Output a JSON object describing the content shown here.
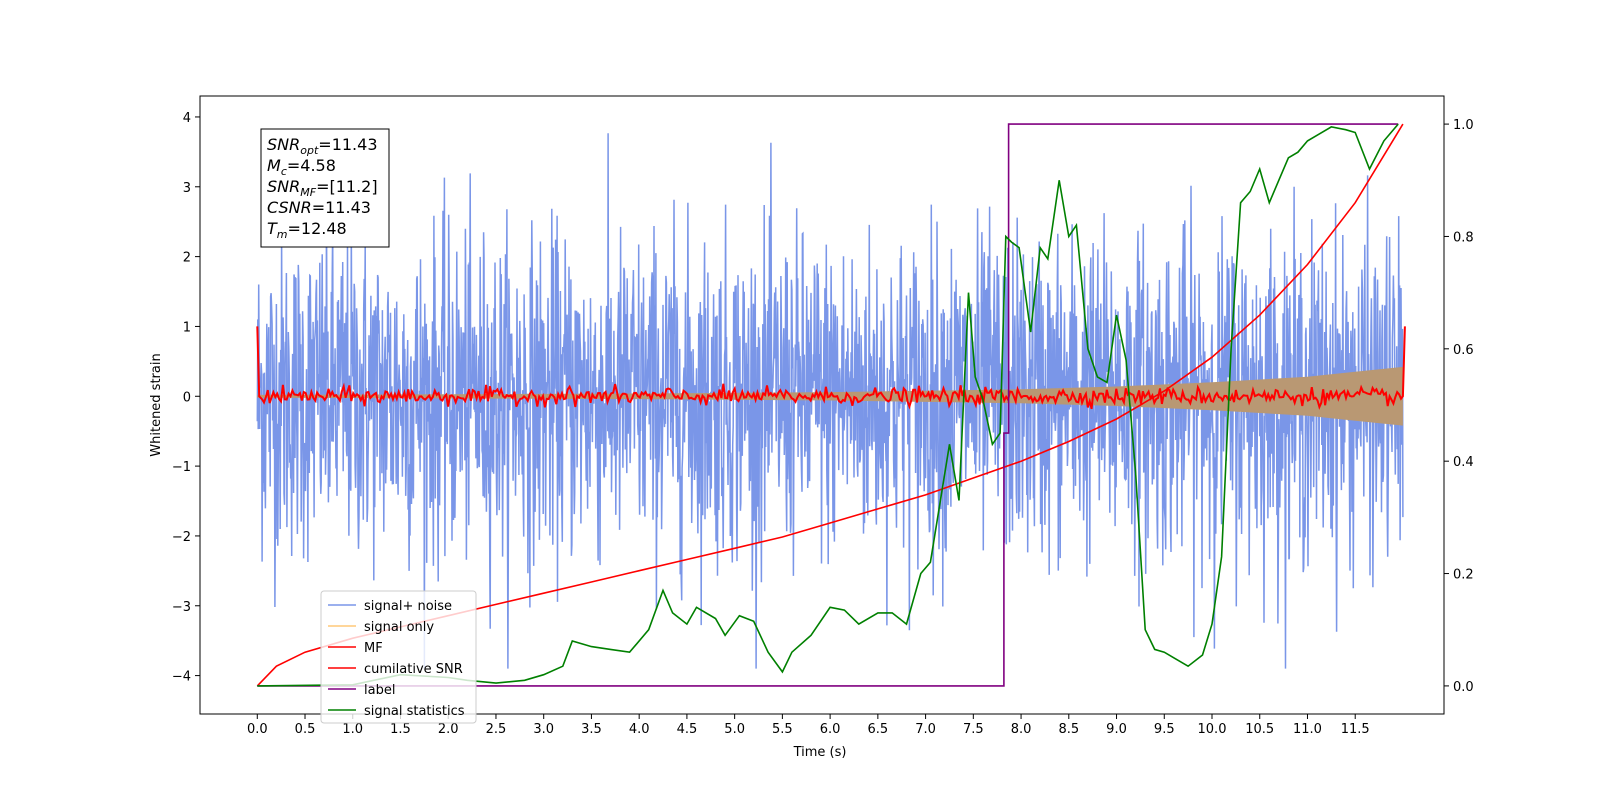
{
  "chart_data": {
    "type": "line",
    "xlabel": "Time (s)",
    "ylabel": "Whitened strain",
    "xlim": [
      -0.6,
      12.43
    ],
    "ylim": [
      -4.55,
      4.3
    ],
    "ylim_right": [
      -0.05,
      1.05
    ],
    "xticks": [
      "0.0",
      "0.5",
      "1.0",
      "1.5",
      "2.0",
      "2.5",
      "3.0",
      "3.5",
      "4.0",
      "4.5",
      "5.0",
      "5.5",
      "6.0",
      "6.5",
      "7.0",
      "7.5",
      "8.0",
      "8.5",
      "9.0",
      "9.5",
      "10.0",
      "10.5",
      "11.0",
      "11.5"
    ],
    "yticks_left": [
      "−4",
      "−3",
      "−2",
      "−1",
      "0",
      "1",
      "2",
      "3",
      "4"
    ],
    "yticks_right": [
      "0.0",
      "0.2",
      "0.4",
      "0.6",
      "0.8",
      "1.0"
    ],
    "annotation": [
      {
        "base": "SNR",
        "sub": "opt",
        "value": "=11.43"
      },
      {
        "base": "M",
        "sub": "c",
        "value": "=4.58"
      },
      {
        "base": "SNR",
        "sub": "MF",
        "value": "=[11.2]"
      },
      {
        "base": "CSNR",
        "sub": "",
        "value": "=11.43"
      },
      {
        "base": "T",
        "sub": "m",
        "value": "=12.48"
      }
    ],
    "legend_placement": "lower-left",
    "legend": [
      {
        "label": "signal+ noise",
        "color": "#7a96e8"
      },
      {
        "label": "signal only",
        "color": "#ffc878"
      },
      {
        "label": "MF",
        "color": "#ff0000"
      },
      {
        "label": "cumilative SNR",
        "color": "#ff0000"
      },
      {
        "label": "label",
        "color": "#800080"
      },
      {
        "label": "signal statistics",
        "color": "#008000"
      }
    ],
    "series": [
      {
        "name": "signal+ noise",
        "axis": "left",
        "description": "dense whitened noise, std ~1.1",
        "x_range": [
          0.0,
          12.0
        ],
        "amplitude_envelope": 3.9
      },
      {
        "name": "signal only",
        "axis": "left",
        "x": [
          0.0,
          2.0,
          4.0,
          6.0,
          7.0,
          8.0,
          9.0,
          10.0,
          11.0,
          11.5,
          12.0
        ],
        "values": [
          0.02,
          0.03,
          0.04,
          0.06,
          0.08,
          0.1,
          0.14,
          0.2,
          0.28,
          0.35,
          0.42
        ]
      },
      {
        "name": "MF",
        "axis": "left",
        "x": [
          0.0,
          0.02,
          0.05,
          12.0,
          12.02
        ],
        "values": [
          1.0,
          0.0,
          0.1,
          0.0,
          1.0
        ],
        "description": "jitters around 0 with amplitude ~0.15 between 0.05 and 12.0"
      },
      {
        "name": "cumilative SNR",
        "axis": "right",
        "x": [
          0.0,
          0.2,
          0.5,
          1.0,
          1.5,
          2.0,
          2.5,
          3.0,
          3.5,
          4.0,
          4.5,
          5.0,
          5.5,
          6.0,
          6.5,
          7.0,
          7.5,
          8.0,
          8.5,
          9.0,
          9.5,
          10.0,
          10.5,
          11.0,
          11.5,
          12.0
        ],
        "values": [
          0.0,
          0.035,
          0.06,
          0.085,
          0.105,
          0.125,
          0.145,
          0.165,
          0.185,
          0.205,
          0.225,
          0.245,
          0.265,
          0.29,
          0.315,
          0.34,
          0.37,
          0.4,
          0.435,
          0.475,
          0.525,
          0.585,
          0.66,
          0.75,
          0.86,
          1.0
        ]
      },
      {
        "name": "label",
        "axis": "right",
        "x": [
          0.0,
          7.82,
          7.82,
          7.87,
          7.87,
          11.95
        ],
        "values": [
          0.0,
          0.0,
          0.45,
          0.45,
          1.0,
          1.0
        ]
      },
      {
        "name": "signal statistics",
        "axis": "right",
        "x": [
          0.0,
          1.0,
          1.5,
          2.0,
          2.2,
          2.5,
          2.8,
          3.0,
          3.2,
          3.3,
          3.5,
          3.7,
          3.9,
          4.1,
          4.25,
          4.35,
          4.5,
          4.6,
          4.8,
          4.9,
          5.05,
          5.2,
          5.35,
          5.5,
          5.6,
          5.8,
          6.0,
          6.15,
          6.3,
          6.5,
          6.65,
          6.8,
          6.95,
          7.05,
          7.25,
          7.35,
          7.45,
          7.52,
          7.6,
          7.7,
          7.78,
          7.84,
          7.9,
          7.98,
          8.1,
          8.2,
          8.28,
          8.4,
          8.5,
          8.58,
          8.7,
          8.8,
          8.9,
          9.0,
          9.1,
          9.2,
          9.3,
          9.4,
          9.5,
          9.6,
          9.75,
          9.9,
          10.0,
          10.1,
          10.2,
          10.3,
          10.4,
          10.5,
          10.6,
          10.7,
          10.8,
          10.9,
          11.0,
          11.1,
          11.25,
          11.4,
          11.5,
          11.65,
          11.8,
          11.95
        ],
        "values": [
          0.0,
          0.002,
          0.02,
          0.015,
          0.01,
          0.005,
          0.01,
          0.02,
          0.035,
          0.08,
          0.07,
          0.065,
          0.06,
          0.1,
          0.17,
          0.13,
          0.11,
          0.14,
          0.12,
          0.09,
          0.125,
          0.115,
          0.06,
          0.025,
          0.06,
          0.09,
          0.14,
          0.135,
          0.11,
          0.13,
          0.13,
          0.11,
          0.2,
          0.22,
          0.43,
          0.33,
          0.7,
          0.55,
          0.51,
          0.43,
          0.45,
          0.8,
          0.79,
          0.78,
          0.63,
          0.78,
          0.76,
          0.9,
          0.8,
          0.82,
          0.6,
          0.55,
          0.54,
          0.66,
          0.58,
          0.38,
          0.1,
          0.065,
          0.06,
          0.05,
          0.035,
          0.055,
          0.11,
          0.23,
          0.6,
          0.86,
          0.88,
          0.92,
          0.86,
          0.9,
          0.94,
          0.95,
          0.97,
          0.98,
          0.995,
          0.99,
          0.985,
          0.92,
          0.97,
          1.0
        ]
      }
    ]
  }
}
